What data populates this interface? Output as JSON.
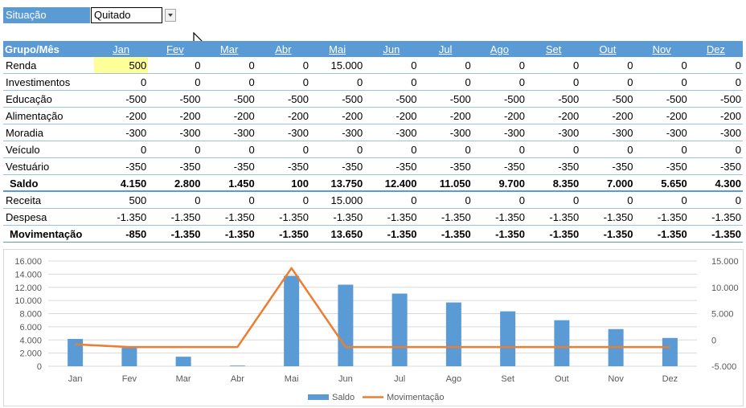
{
  "filter": {
    "label": "Situação",
    "value": "Quitado"
  },
  "table": {
    "header_label": "Grupo/Mês",
    "months": [
      "Jan",
      "Fev",
      "Mar",
      "Abr",
      "Mai",
      "Jun",
      "Jul",
      "Ago",
      "Set",
      "Out",
      "Nov",
      "Dez"
    ],
    "rows": [
      {
        "label": "Renda",
        "values": [
          "500",
          "0",
          "0",
          "0",
          "15.000",
          "0",
          "0",
          "0",
          "0",
          "0",
          "0",
          "0"
        ]
      },
      {
        "label": "Investimentos",
        "values": [
          "0",
          "0",
          "0",
          "0",
          "0",
          "0",
          "0",
          "0",
          "0",
          "0",
          "0",
          "0"
        ]
      },
      {
        "label": "Educação",
        "values": [
          "-500",
          "-500",
          "-500",
          "-500",
          "-500",
          "-500",
          "-500",
          "-500",
          "-500",
          "-500",
          "-500",
          "-500"
        ]
      },
      {
        "label": "Alimentação",
        "values": [
          "-200",
          "-200",
          "-200",
          "-200",
          "-200",
          "-200",
          "-200",
          "-200",
          "-200",
          "-200",
          "-200",
          "-200"
        ]
      },
      {
        "label": "Moradia",
        "values": [
          "-300",
          "-300",
          "-300",
          "-300",
          "-300",
          "-300",
          "-300",
          "-300",
          "-300",
          "-300",
          "-300",
          "-300"
        ]
      },
      {
        "label": "Veículo",
        "values": [
          "0",
          "0",
          "0",
          "0",
          "0",
          "0",
          "0",
          "0",
          "0",
          "0",
          "0",
          "0"
        ]
      },
      {
        "label": "Vestuário",
        "values": [
          "-350",
          "-350",
          "-350",
          "-350",
          "-350",
          "-350",
          "-350",
          "-350",
          "-350",
          "-350",
          "-350",
          "-350"
        ]
      }
    ],
    "total": {
      "label": "Saldo",
      "values": [
        "4.150",
        "2.800",
        "1.450",
        "100",
        "13.750",
        "12.400",
        "11.050",
        "9.700",
        "8.350",
        "7.000",
        "5.650",
        "4.300"
      ]
    }
  },
  "summary": {
    "rows": [
      {
        "label": "Receita",
        "values": [
          "500",
          "0",
          "0",
          "0",
          "15.000",
          "0",
          "0",
          "0",
          "0",
          "0",
          "0",
          "0"
        ]
      },
      {
        "label": "Despesa",
        "values": [
          "-1.350",
          "-1.350",
          "-1.350",
          "-1.350",
          "-1.350",
          "-1.350",
          "-1.350",
          "-1.350",
          "-1.350",
          "-1.350",
          "-1.350",
          "-1.350"
        ]
      }
    ],
    "total": {
      "label": "Movimentação",
      "values": [
        "-850",
        "-1.350",
        "-1.350",
        "-1.350",
        "13.650",
        "-1.350",
        "-1.350",
        "-1.350",
        "-1.350",
        "-1.350",
        "-1.350",
        "-1.350"
      ]
    }
  },
  "colors": {
    "header": "#5b9bd5",
    "highlight": "#ffff99",
    "bar": "#5b9bd5",
    "line": "#ed7d31"
  },
  "chart_data": {
    "type": "bar",
    "categories": [
      "Jan",
      "Fev",
      "Mar",
      "Abr",
      "Mai",
      "Jun",
      "Jul",
      "Ago",
      "Set",
      "Out",
      "Nov",
      "Dez"
    ],
    "series": [
      {
        "name": "Saldo",
        "kind": "bar",
        "axis": "left",
        "values": [
          4150,
          2800,
          1450,
          100,
          13750,
          12400,
          11050,
          9700,
          8350,
          7000,
          5650,
          4300
        ]
      },
      {
        "name": "Movimentação",
        "kind": "line",
        "axis": "right",
        "values": [
          -850,
          -1350,
          -1350,
          -1350,
          13650,
          -1350,
          -1350,
          -1350,
          -1350,
          -1350,
          -1350,
          -1350
        ]
      }
    ],
    "y_left": {
      "min": 0,
      "max": 16000,
      "ticks": [
        0,
        2000,
        4000,
        6000,
        8000,
        10000,
        12000,
        14000,
        16000
      ],
      "tick_labels": [
        "0",
        "2.000",
        "4.000",
        "6.000",
        "8.000",
        "10.000",
        "12.000",
        "14.000",
        "16.000"
      ]
    },
    "y_right": {
      "min": -5000,
      "max": 15000,
      "ticks": [
        -5000,
        0,
        5000,
        10000,
        15000
      ],
      "tick_labels": [
        "-5.000",
        "0",
        "5.000",
        "10.000",
        "15.000"
      ]
    },
    "grid": true,
    "legend_position": "bottom"
  }
}
